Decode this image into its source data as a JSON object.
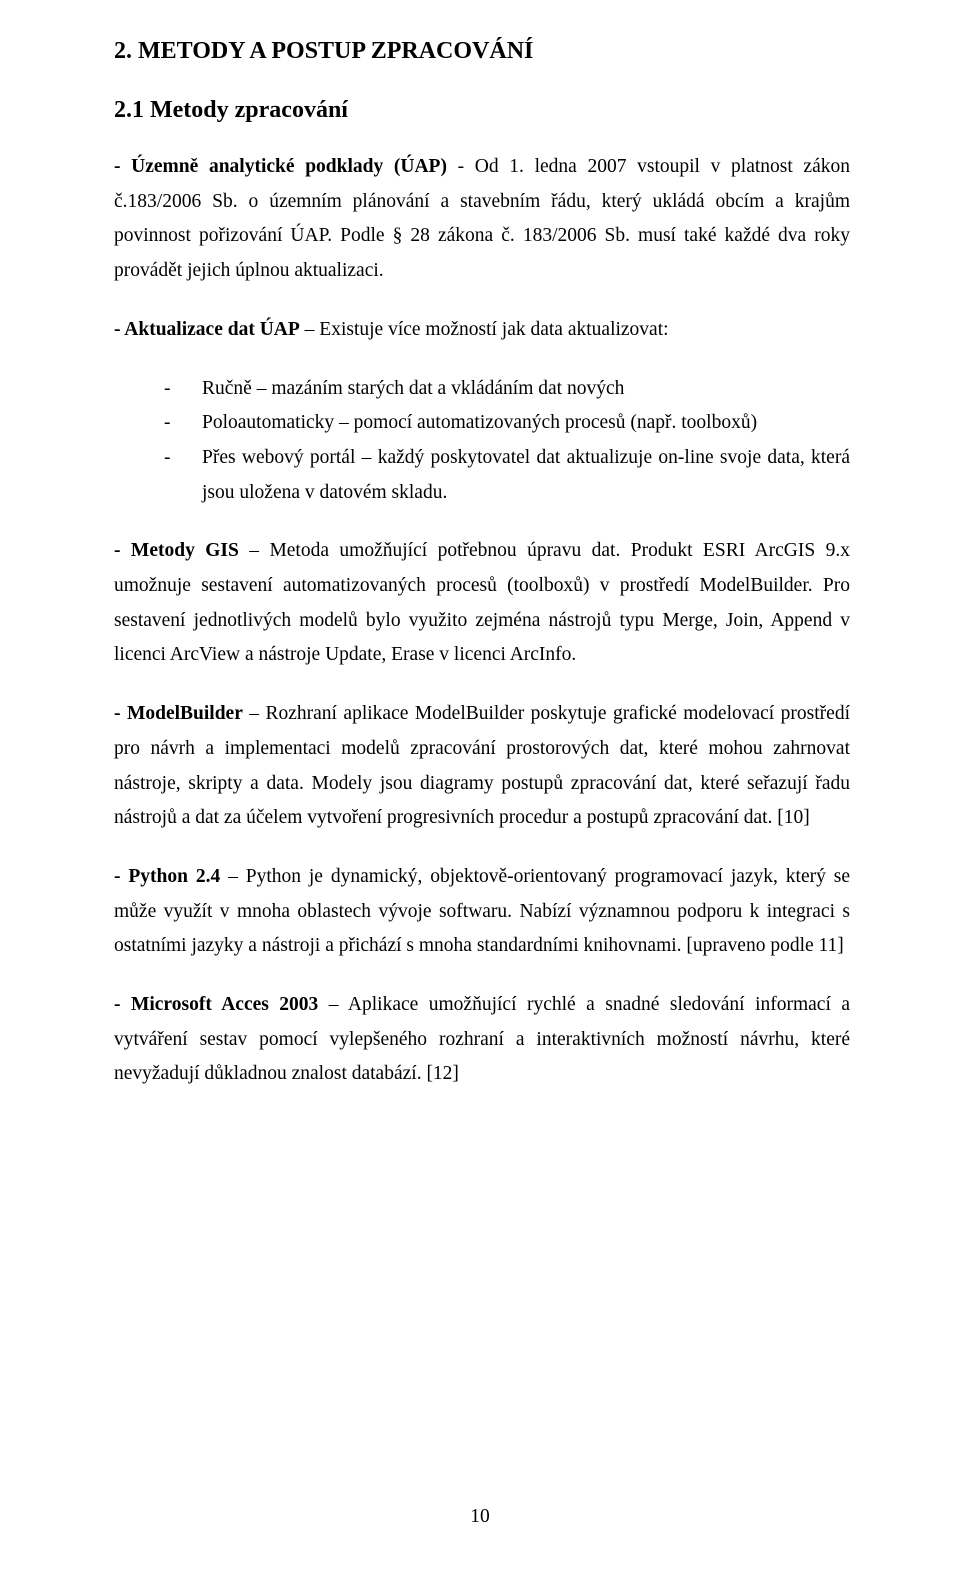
{
  "heading_main": "2. METODY A POSTUP ZPRACOVÁNÍ",
  "heading_sub": "2.1 Metody zpracování",
  "p1_bold": "- Územně analytické podklady (ÚAP)",
  "p1_rest": " - Od 1. ledna 2007 vstoupil v platnost zákon č.183/2006 Sb. o územním plánování a stavebním řádu, který ukládá obcím a krajům povinnost pořizování ÚAP. Podle § 28 zákona č. 183/2006 Sb. musí také každé dva roky provádět jejich úplnou aktualizaci.",
  "p2_bold": "- Aktualizace dat ÚAP",
  "p2_rest": " – Existuje více možností jak data aktualizovat:",
  "list": {
    "item1": "Ručně – mazáním starých dat a vkládáním dat nových",
    "item2": "Poloautomaticky – pomocí automatizovaných procesů (např. toolboxů)",
    "item3": "Přes webový portál – každý poskytovatel dat aktualizuje on-line svoje data, která jsou uložena v datovém skladu."
  },
  "p3_bold": "- Metody GIS",
  "p3_rest": " – Metoda umožňující potřebnou úpravu dat. Produkt ESRI ArcGIS 9.x umožnuje sestavení automatizovaných procesů (toolboxů) v prostředí ModelBuilder. Pro sestavení jednotlivých modelů bylo využito zejména nástrojů typu Merge, Join, Append v licenci ArcView a nástroje Update, Erase v licenci ArcInfo.",
  "p4_bold": "- ModelBuilder",
  "p4_rest": " – Rozhraní aplikace ModelBuilder poskytuje grafické modelovací prostředí pro návrh a implementaci modelů zpracování prostorových dat, které mohou zahrnovat nástroje, skripty a data. Modely jsou diagramy postupů zpracování dat, které seřazují řadu nástrojů a dat za účelem vytvoření progresivních procedur a postupů zpracování dat. [10]",
  "p5_bold": "- Python 2.4",
  "p5_rest": " – Python je dynamický, objektově-orientovaný programovací jazyk, který se může využít v mnoha oblastech vývoje softwaru. Nabízí významnou podporu k integraci s ostatními jazyky a nástroji a přichází s mnoha standardními knihovnami. [upraveno podle 11]",
  "p6_bold": "- Microsoft Acces 2003",
  "p6_rest": " – Aplikace umožňující rychlé a snadné sledování informací a vytváření sestav pomocí vylepšeného rozhraní a interaktivních možností návrhu, které nevyžadují důkladnou znalost databází. [12]",
  "page_number": "10"
}
